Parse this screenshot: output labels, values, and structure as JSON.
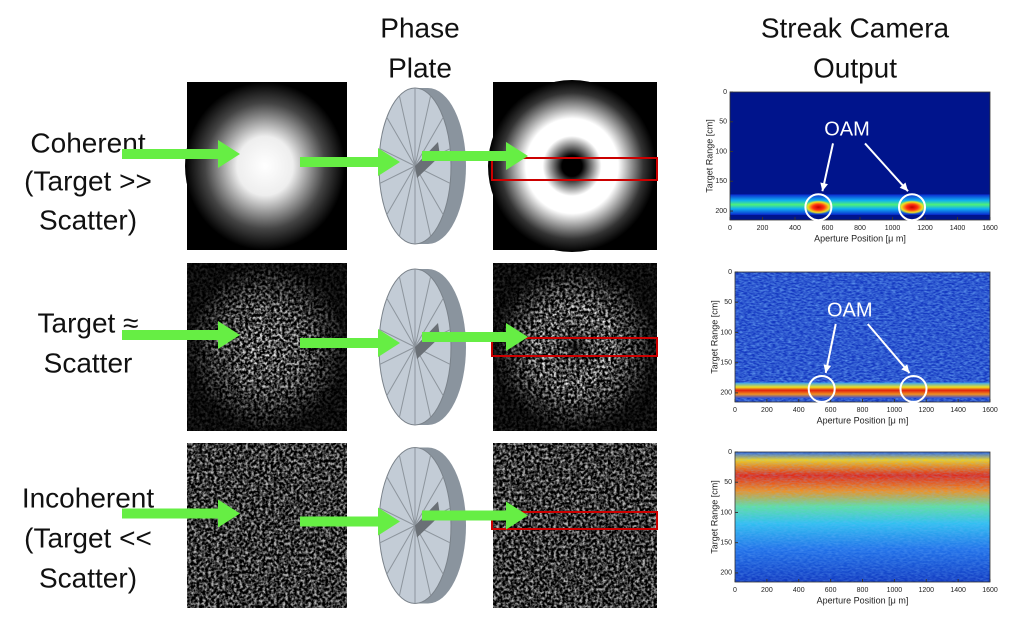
{
  "headers": {
    "phase_plate": [
      "Phase",
      "Plate"
    ],
    "streak_camera": [
      "Streak Camera",
      "Output"
    ]
  },
  "rows": [
    {
      "label": [
        "Coherent",
        "(Target >>",
        "Scatter)"
      ],
      "annotation": "OAM"
    },
    {
      "label": [
        "Target ≈",
        "Scatter"
      ],
      "annotation": "OAM"
    },
    {
      "label": [
        "Incoherent",
        "(Target <<",
        "Scatter)"
      ]
    }
  ],
  "plot_axes": {
    "ylabel": "Target Range [cm]",
    "xlabel": "Aperture Position [μ m]",
    "yticks": [
      0,
      50,
      100,
      150,
      200
    ],
    "xticks": [
      0,
      200,
      400,
      600,
      800,
      1000,
      1200,
      1400,
      1600
    ]
  }
}
